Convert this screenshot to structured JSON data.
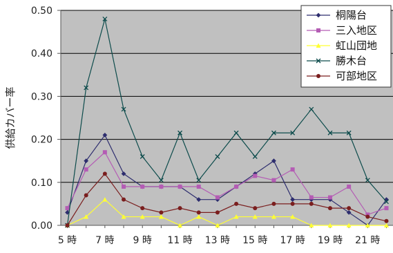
{
  "chart_data": {
    "type": "line",
    "ylabel": "供給カバー率",
    "ylim": [
      0,
      0.5
    ],
    "yticks": [
      "0.00",
      "0.10",
      "0.20",
      "0.30",
      "0.40",
      "0.50"
    ],
    "ytick_values": [
      0,
      0.1,
      0.2,
      0.3,
      0.4,
      0.5
    ],
    "x": [
      5,
      6,
      7,
      8,
      9,
      10,
      11,
      12,
      13,
      14,
      15,
      16,
      17,
      18,
      19,
      20,
      21,
      22
    ],
    "xticks": [
      "5 時",
      "7 時",
      "9 時",
      "11 時",
      "13 時",
      "15 時",
      "17 時",
      "19 時",
      "21 時"
    ],
    "xtick_values": [
      5,
      7,
      9,
      11,
      13,
      15,
      17,
      19,
      21
    ],
    "grid": true,
    "legend_position": "top-right",
    "plot_background": "#c0c0c0",
    "series": [
      {
        "name": "桐陽台",
        "color": "#2d2d6e",
        "marker": "diamond",
        "values": [
          0.03,
          0.15,
          0.21,
          0.12,
          0.09,
          0.09,
          0.09,
          0.06,
          0.06,
          0.09,
          0.12,
          0.15,
          0.06,
          0.06,
          0.06,
          0.03,
          0.0,
          0.06
        ]
      },
      {
        "name": "三入地区",
        "color": "#b45cb4",
        "marker": "square",
        "values": [
          0.04,
          0.13,
          0.17,
          0.09,
          0.09,
          0.09,
          0.09,
          0.09,
          0.065,
          0.09,
          0.115,
          0.105,
          0.13,
          0.065,
          0.065,
          0.09,
          0.025,
          0.04
        ]
      },
      {
        "name": "虹山団地",
        "color": "#ffff33",
        "marker": "triangle",
        "values": [
          0.0,
          0.02,
          0.06,
          0.02,
          0.02,
          0.02,
          0.0,
          0.02,
          0.0,
          0.02,
          0.02,
          0.02,
          0.02,
          0.0,
          0.0,
          0.0,
          0.0,
          0.0
        ]
      },
      {
        "name": "勝木台",
        "color": "#0c4b4b",
        "marker": "cross",
        "values": [
          0.0,
          0.32,
          0.48,
          0.27,
          0.16,
          0.105,
          0.215,
          0.105,
          0.16,
          0.215,
          0.16,
          0.215,
          0.215,
          0.27,
          0.215,
          0.215,
          0.105,
          0.055
        ]
      },
      {
        "name": "可部地区",
        "color": "#7a1e1e",
        "marker": "circle",
        "values": [
          0.0,
          0.07,
          0.12,
          0.06,
          0.04,
          0.03,
          0.04,
          0.03,
          0.03,
          0.05,
          0.04,
          0.05,
          0.05,
          0.05,
          0.04,
          0.04,
          0.02,
          0.01
        ]
      }
    ]
  }
}
